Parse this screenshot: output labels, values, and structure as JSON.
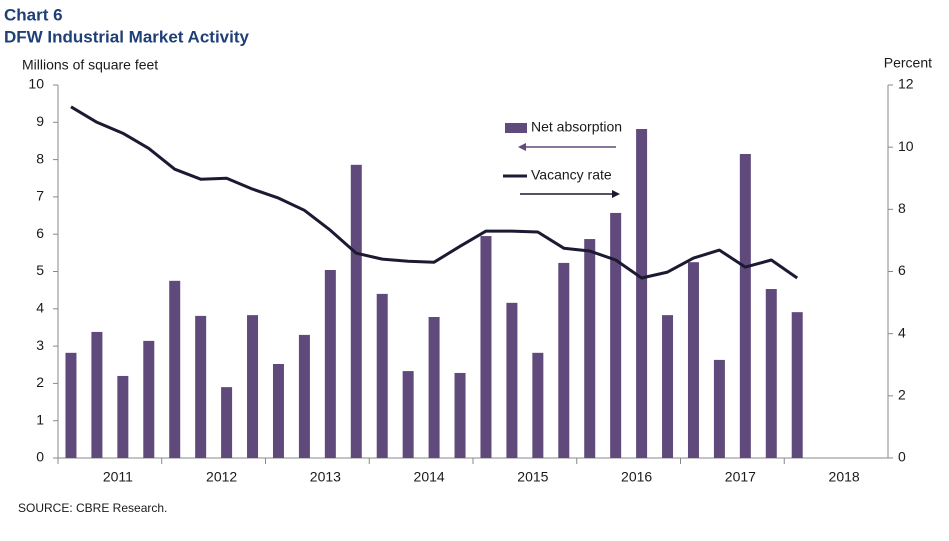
{
  "chart_data": {
    "type": "bar_line",
    "title": "Chart 6",
    "subtitle": "DFW Industrial Market Activity",
    "y_label": "Millions of square feet",
    "y2_label": "Percent",
    "source": "SOURCE: CBRE Research.",
    "x_groups": [
      "2011",
      "2012",
      "2013",
      "2014",
      "2015",
      "2016",
      "2017",
      "2018"
    ],
    "categories": [
      null,
      null,
      null,
      null,
      null,
      null,
      null,
      null,
      null,
      null,
      null,
      null,
      null,
      null,
      null,
      null,
      null,
      null,
      null,
      null,
      null,
      null,
      null,
      null,
      null,
      null,
      null,
      null,
      null,
      null,
      null,
      null
    ],
    "series": [
      {
        "name": "Net absorption",
        "type": "bar",
        "color": "#604a7b",
        "values": [
          2.82,
          3.38,
          2.2,
          3.14,
          4.75,
          3.81,
          1.9,
          3.83,
          2.52,
          3.3,
          5.04,
          7.86,
          4.4,
          2.33,
          3.78,
          2.28,
          5.95,
          4.16,
          2.82,
          5.23,
          5.87,
          6.57,
          8.82,
          3.83,
          5.25,
          2.63,
          8.15,
          4.53,
          3.91,
          null,
          null,
          null
        ]
      },
      {
        "name": "Vacancy rate",
        "type": "line",
        "axis": "y2",
        "color": "#1c1a33",
        "values": [
          11.3,
          10.8,
          10.45,
          9.96,
          9.29,
          8.97,
          9.0,
          8.65,
          8.36,
          7.97,
          7.33,
          6.59,
          6.4,
          6.33,
          6.3,
          6.81,
          7.3,
          7.3,
          7.27,
          6.75,
          6.66,
          6.37,
          5.79,
          5.98,
          6.43,
          6.69,
          6.14,
          6.37,
          5.79,
          null,
          null,
          null
        ]
      }
    ],
    "ylim": [
      0,
      10
    ],
    "yticks": [
      0,
      1,
      2,
      3,
      4,
      5,
      6,
      7,
      8,
      9,
      10
    ],
    "y2lim": [
      0,
      12
    ],
    "y2ticks": [
      0,
      2,
      4,
      6,
      8,
      10,
      12
    ],
    "grid": false
  }
}
